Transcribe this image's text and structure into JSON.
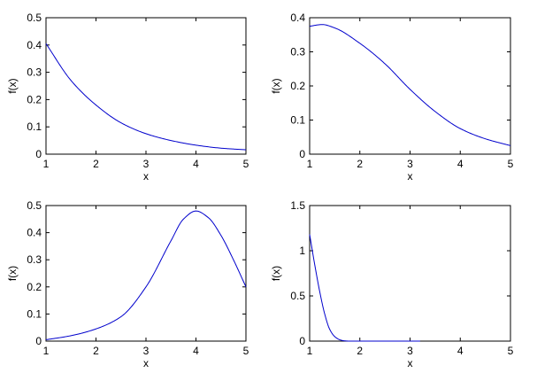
{
  "figure": {
    "background": "#ffffff",
    "line_color": "#0000cc",
    "axes_color": "#000000"
  },
  "chart_data": [
    {
      "type": "line",
      "title": "",
      "xlabel": "x",
      "ylabel": "f(x)",
      "xlim": [
        1,
        5
      ],
      "ylim": [
        0,
        0.5
      ],
      "xticks": [
        1,
        2,
        3,
        4,
        5
      ],
      "xtick_labels": [
        "1",
        "2",
        "3",
        "4",
        "5"
      ],
      "yticks": [
        0,
        0.1,
        0.2,
        0.3,
        0.4,
        0.5
      ],
      "ytick_labels": [
        "0",
        "0.1",
        "0.2",
        "0.3",
        "0.4",
        "0.5"
      ],
      "grid": false,
      "series": [
        {
          "color": "#0000cc",
          "x": [
            1,
            1.5,
            2,
            2.5,
            3,
            3.5,
            4,
            4.5,
            5
          ],
          "y": [
            0.405,
            0.27,
            0.18,
            0.115,
            0.075,
            0.05,
            0.033,
            0.022,
            0.016
          ]
        }
      ]
    },
    {
      "type": "line",
      "title": "",
      "xlabel": "x",
      "ylabel": "f(x)",
      "xlim": [
        1,
        5
      ],
      "ylim": [
        0,
        0.4
      ],
      "xticks": [
        1,
        2,
        3,
        4,
        5
      ],
      "xtick_labels": [
        "1",
        "2",
        "3",
        "4",
        "5"
      ],
      "yticks": [
        0,
        0.1,
        0.2,
        0.3,
        0.4
      ],
      "ytick_labels": [
        "0",
        "0.1",
        "0.2",
        "0.3",
        "0.4"
      ],
      "grid": false,
      "series": [
        {
          "color": "#0000cc",
          "x": [
            1,
            1.25,
            1.5,
            2,
            2.5,
            3,
            3.5,
            4,
            4.5,
            5
          ],
          "y": [
            0.375,
            0.38,
            0.37,
            0.325,
            0.265,
            0.19,
            0.125,
            0.075,
            0.045,
            0.025
          ]
        }
      ]
    },
    {
      "type": "line",
      "title": "",
      "xlabel": "x",
      "ylabel": "f(x)",
      "xlim": [
        1,
        5
      ],
      "ylim": [
        0,
        0.5
      ],
      "xticks": [
        1,
        2,
        3,
        4,
        5
      ],
      "xtick_labels": [
        "1",
        "2",
        "3",
        "4",
        "5"
      ],
      "yticks": [
        0,
        0.1,
        0.2,
        0.3,
        0.4,
        0.5
      ],
      "ytick_labels": [
        "0",
        "0.1",
        "0.2",
        "0.3",
        "0.4",
        "0.5"
      ],
      "grid": false,
      "series": [
        {
          "color": "#0000cc",
          "x": [
            1,
            1.5,
            2,
            2.5,
            3,
            3.5,
            3.75,
            4,
            4.25,
            4.5,
            4.75,
            5
          ],
          "y": [
            0.005,
            0.02,
            0.045,
            0.09,
            0.2,
            0.37,
            0.45,
            0.48,
            0.455,
            0.39,
            0.3,
            0.2
          ]
        }
      ]
    },
    {
      "type": "line",
      "title": "",
      "xlabel": "x",
      "ylabel": "f(x)",
      "xlim": [
        1,
        5
      ],
      "ylim": [
        0,
        1.5
      ],
      "xticks": [
        1,
        2,
        3,
        4,
        5
      ],
      "xtick_labels": [
        "1",
        "2",
        "3",
        "4",
        "5"
      ],
      "yticks": [
        0,
        0.5,
        1,
        1.5
      ],
      "ytick_labels": [
        "0",
        "0.5",
        "1",
        "1.5"
      ],
      "grid": false,
      "series": [
        {
          "color": "#0000cc",
          "x": [
            1,
            1.1,
            1.2,
            1.3,
            1.4,
            1.5,
            1.6,
            1.7,
            1.8,
            2,
            3.2
          ],
          "y": [
            1.18,
            0.85,
            0.55,
            0.3,
            0.13,
            0.05,
            0.015,
            0.003,
            0,
            0,
            0
          ]
        }
      ]
    }
  ]
}
